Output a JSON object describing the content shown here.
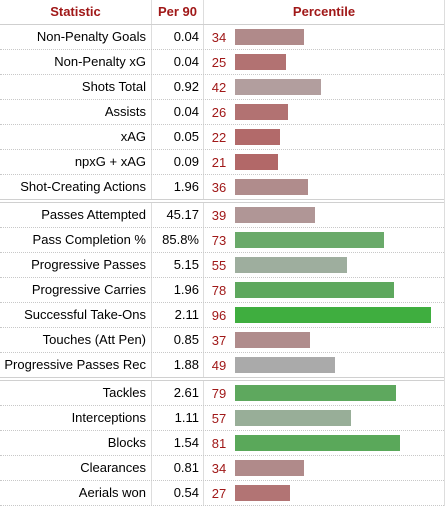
{
  "header": {
    "statistic": "Statistic",
    "per90": "Per 90",
    "percentile": "Percentile"
  },
  "groups": [
    {
      "rows": [
        {
          "stat": "Non-Penalty Goals",
          "per90": "0.04",
          "percentile": "34",
          "value": 34,
          "color": "#b08a8a"
        },
        {
          "stat": "Non-Penalty xG",
          "per90": "0.04",
          "percentile": "25",
          "value": 25,
          "color": "#b27272"
        },
        {
          "stat": "Shots Total",
          "per90": "0.92",
          "percentile": "42",
          "value": 42,
          "color": "#b29e9e"
        },
        {
          "stat": "Assists",
          "per90": "0.04",
          "percentile": "26",
          "value": 26,
          "color": "#b27272"
        },
        {
          "stat": "xAG",
          "per90": "0.05",
          "percentile": "22",
          "value": 22,
          "color": "#b26a6a"
        },
        {
          "stat": "npxG + xAG",
          "per90": "0.09",
          "percentile": "21",
          "value": 21,
          "color": "#b26868"
        },
        {
          "stat": "Shot-Creating Actions",
          "per90": "1.96",
          "percentile": "36",
          "value": 36,
          "color": "#b08c8c"
        }
      ]
    },
    {
      "rows": [
        {
          "stat": "Passes Attempted",
          "per90": "45.17",
          "percentile": "39",
          "value": 39,
          "color": "#b09696"
        },
        {
          "stat": "Pass Completion %",
          "per90": "85.8%",
          "percentile": "73",
          "value": 73,
          "color": "#6aaa6a"
        },
        {
          "stat": "Progressive Passes",
          "per90": "5.15",
          "percentile": "55",
          "value": 55,
          "color": "#9eae9e"
        },
        {
          "stat": "Progressive Carries",
          "per90": "1.96",
          "percentile": "78",
          "value": 78,
          "color": "#5ea85e"
        },
        {
          "stat": "Successful Take-Ons",
          "per90": "2.11",
          "percentile": "96",
          "value": 96,
          "color": "#3fae3f"
        },
        {
          "stat": "Touches (Att Pen)",
          "per90": "0.85",
          "percentile": "37",
          "value": 37,
          "color": "#b08c8c"
        },
        {
          "stat": "Progressive Passes Rec",
          "per90": "1.88",
          "percentile": "49",
          "value": 49,
          "color": "#aaaaaa"
        }
      ]
    },
    {
      "rows": [
        {
          "stat": "Tackles",
          "per90": "2.61",
          "percentile": "79",
          "value": 79,
          "color": "#5ea85e"
        },
        {
          "stat": "Interceptions",
          "per90": "1.11",
          "percentile": "57",
          "value": 57,
          "color": "#98ae98"
        },
        {
          "stat": "Blocks",
          "per90": "1.54",
          "percentile": "81",
          "value": 81,
          "color": "#5aa85a"
        },
        {
          "stat": "Clearances",
          "per90": "0.81",
          "percentile": "34",
          "value": 34,
          "color": "#b08a8a"
        },
        {
          "stat": "Aerials won",
          "per90": "0.54",
          "percentile": "27",
          "value": 27,
          "color": "#b27474"
        }
      ]
    }
  ]
}
